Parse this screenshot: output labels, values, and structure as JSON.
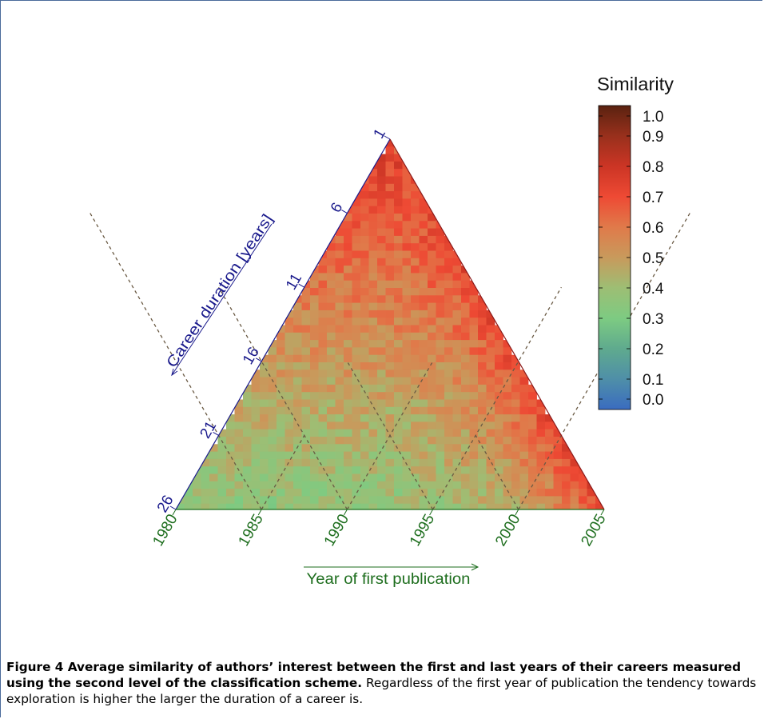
{
  "chart_data": {
    "type": "heatmap",
    "subtype": "triangular",
    "title": "",
    "xlabel": "Year of first publication",
    "ylabel": "Career duration [years]",
    "x_ticks": [
      "1980",
      "1985",
      "1990",
      "1995",
      "2000",
      "2005"
    ],
    "y_ticks": [
      "1",
      "6",
      "11",
      "16",
      "21",
      "26"
    ],
    "x_range": [
      1980,
      2005
    ],
    "duration_range": [
      1,
      26
    ],
    "colorbar": {
      "label": "Similarity",
      "range": [
        0.0,
        1.0
      ],
      "ticks": [
        "1.0",
        "0.9",
        "0.8",
        "0.7",
        "0.6",
        "0.5",
        "0.4",
        "0.3",
        "0.2",
        "0.1",
        "0.0"
      ],
      "stops": [
        {
          "value": 0.0,
          "color": "#3a6cc0"
        },
        {
          "value": 0.1,
          "color": "#4f8fa8"
        },
        {
          "value": 0.2,
          "color": "#5faa8e"
        },
        {
          "value": 0.3,
          "color": "#7dcb82"
        },
        {
          "value": 0.4,
          "color": "#9dbe74"
        },
        {
          "value": 0.5,
          "color": "#c89a5c"
        },
        {
          "value": 0.6,
          "color": "#e07a4a"
        },
        {
          "value": 0.7,
          "color": "#ee4a34"
        },
        {
          "value": 0.8,
          "color": "#cc3525"
        },
        {
          "value": 0.9,
          "color": "#99301c"
        },
        {
          "value": 1.0,
          "color": "#5a2210"
        }
      ]
    },
    "grid": "dashed",
    "trend": {
      "description_values": {
        "short_career": 0.75,
        "long_career": 0.35
      },
      "right_edge_value": 0.72
    }
  },
  "colors": {
    "left_axis": "#1a1a8c",
    "bottom_axis": "#1e6e1e",
    "right_edge": "#8b1a1a",
    "grid": "#6a5a44"
  },
  "caption": {
    "title": "Figure 4 Average similarity of authors’ interest between the first and last years of their careers measured using the second level of the classification scheme.",
    "body": " Regardless of the first year of publication the tendency towards exploration is higher the larger the duration of a career is."
  }
}
